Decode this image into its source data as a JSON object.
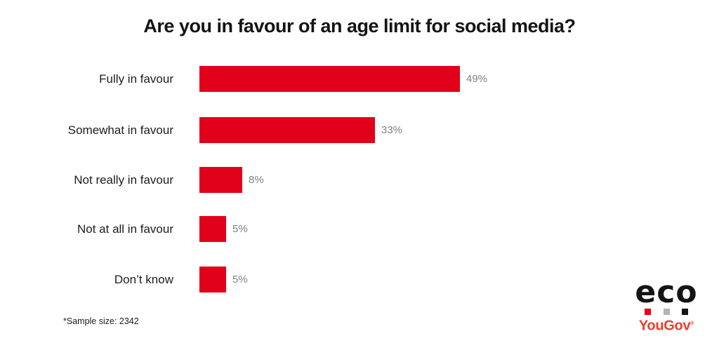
{
  "chart_data": {
    "type": "bar",
    "orientation": "horizontal",
    "title": "Are you in favour of an age limit for social media?",
    "categories": [
      "Fully in favour",
      "Somewhat in favour",
      "Not really in favour",
      "Not at all in favour",
      "Don’t know"
    ],
    "values": [
      49,
      33,
      8,
      5,
      5
    ],
    "value_labels": [
      "49%",
      "33%",
      "8%",
      "5%",
      "5%"
    ],
    "xlim": [
      0,
      100
    ],
    "grid": false,
    "axes_visible": false,
    "bar_color": "#e2011b",
    "value_label_color": "#7f7f7f",
    "category_label_color": "#1c1c1c"
  },
  "footnote": "*Sample size: 2342",
  "branding": {
    "eco_text": "eco",
    "eco_color": "#141414",
    "square_colors": [
      "#e2001a",
      "#b5b5b5",
      "#141414"
    ],
    "yougov_text": "YouGov",
    "yougov_mark": "®",
    "yougov_color": "#e8402e"
  }
}
